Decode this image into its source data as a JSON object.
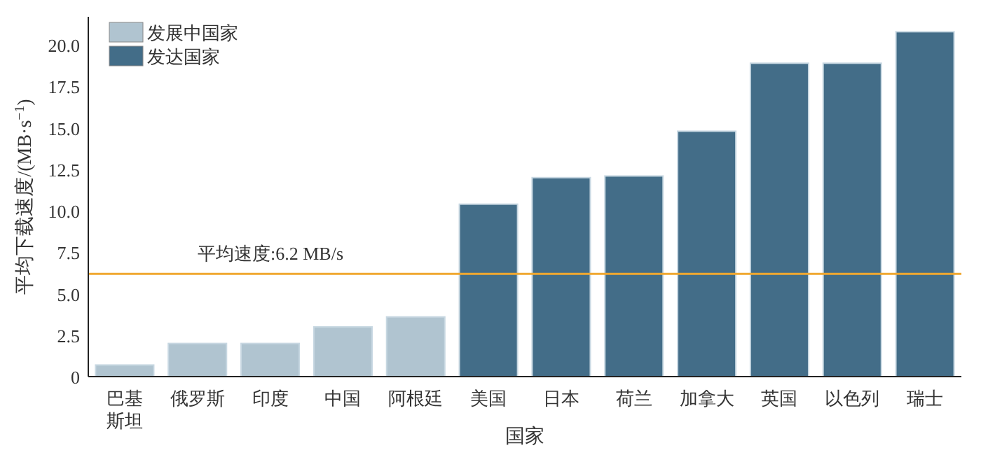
{
  "chart_data": {
    "type": "bar",
    "xlabel": "国家",
    "ylabel": "平均下载速度/(MB·s$^{−1}$)",
    "categories": [
      "巴基斯坦",
      "俄罗斯",
      "印度",
      "中国",
      "阿根廷",
      "美国",
      "日本",
      "荷兰",
      "加拿大",
      "英国",
      "以色列",
      "瑞士"
    ],
    "series": [
      {
        "name": "发展中国家",
        "color": "#b0c4d0",
        "values": [
          0.7,
          2.0,
          2.0,
          3.0,
          3.6,
          null,
          null,
          null,
          null,
          null,
          null,
          null
        ]
      },
      {
        "name": "发达国家",
        "color": "#436d88",
        "values": [
          null,
          null,
          null,
          null,
          null,
          10.4,
          12.0,
          12.1,
          14.8,
          18.9,
          18.9,
          20.8
        ]
      }
    ],
    "ylim": [
      0,
      21.7
    ],
    "yticks": [
      0,
      2.5,
      {
        "value": 5,
        "label": "5.0"
      },
      7.5,
      {
        "value": 10,
        "label": "10.0"
      },
      12.5,
      {
        "value": 15,
        "label": "15.0"
      },
      17.5,
      {
        "value": 20,
        "label": "20.0"
      }
    ],
    "ref_lines": [
      {
        "axis": "y",
        "value": 6.2,
        "label": "平均速度:6.2 MB/s",
        "color": "#f0a830"
      }
    ],
    "grid": false,
    "legend": "top left"
  }
}
